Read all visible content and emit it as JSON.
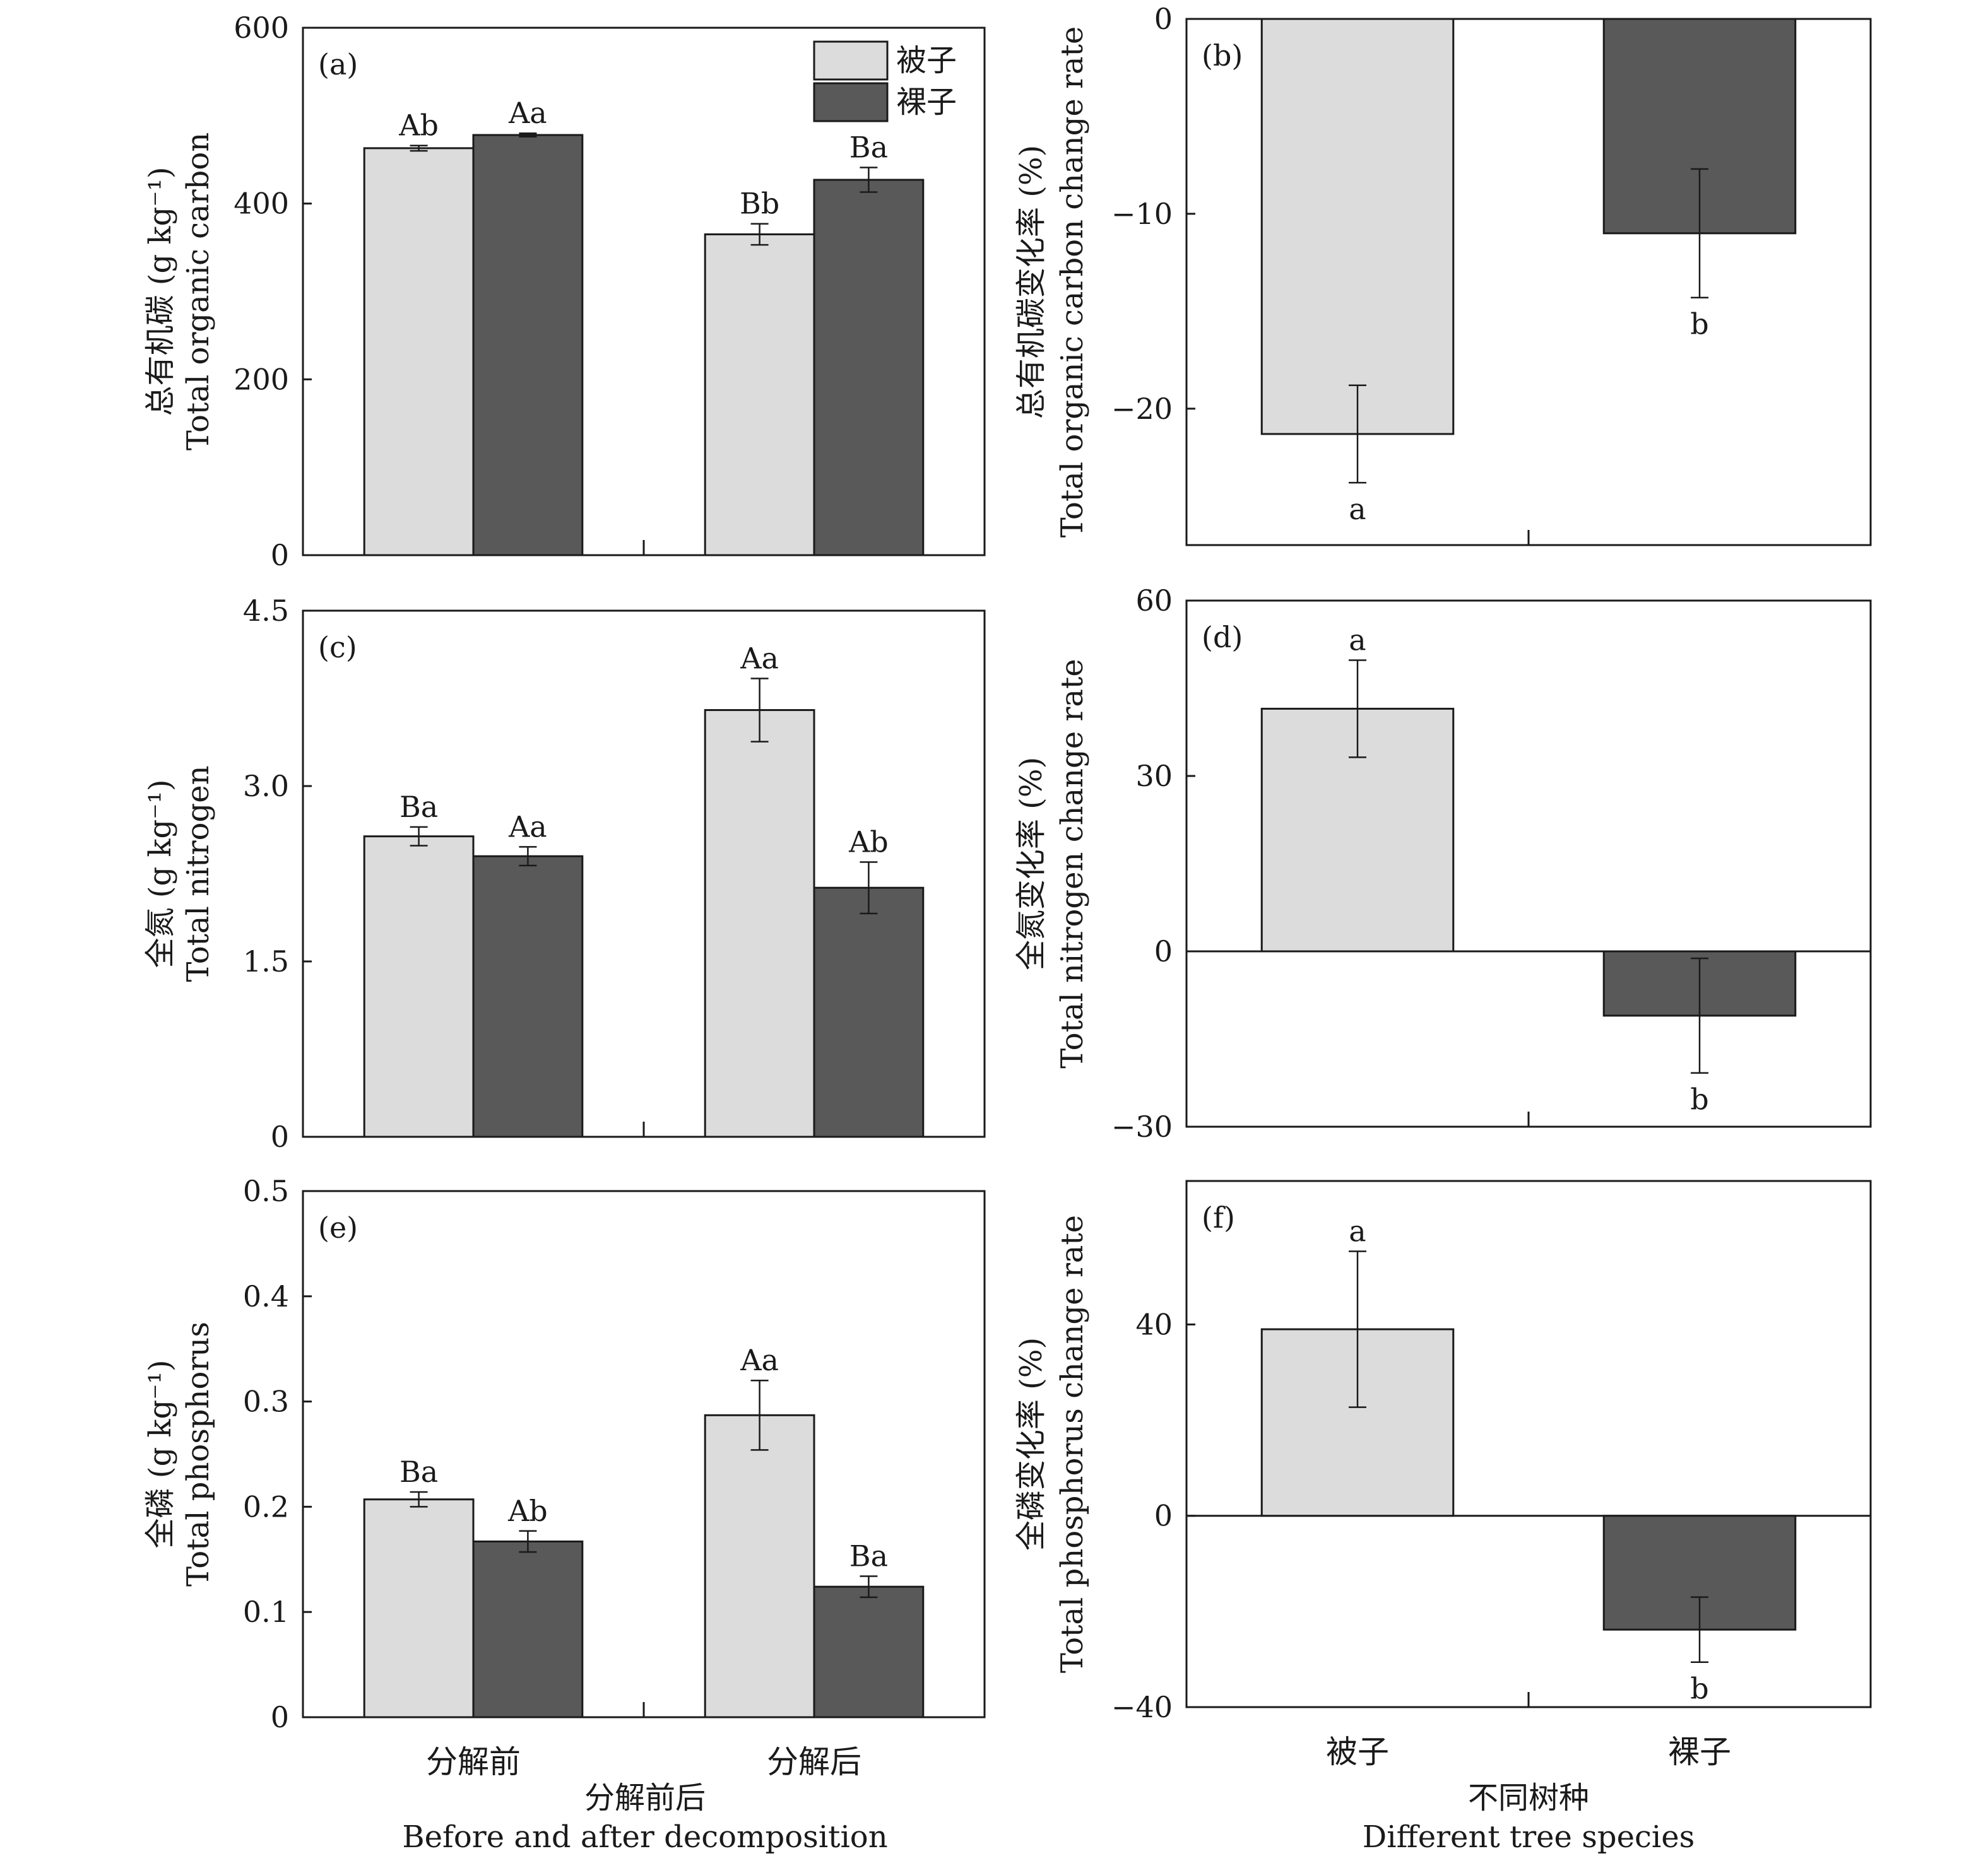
{
  "figure": {
    "xlabels": {
      "left": {
        "zh": "分解前后",
        "en": "Before and after decomposition"
      },
      "right": {
        "zh": "不同树种",
        "en": "Different tree species"
      }
    },
    "legend": {
      "items": [
        "被子",
        "裸子"
      ],
      "placement": "top-right of panel (a)"
    }
  },
  "colors": {
    "angiosperm": "#dcdcdc",
    "gymnosperm": "#595959",
    "axis": "#1a1a1a"
  },
  "chart_data": [
    {
      "panel": "(a)",
      "type": "bar",
      "ylabel_zh": "总有机碳",
      "ylabel_en": "Total organic carbon",
      "yunit": "(g kg⁻¹)",
      "ylim": [
        0,
        600
      ],
      "yticks": [
        0,
        200,
        400,
        600
      ],
      "categories": [
        "分解前",
        "分解后"
      ],
      "series": [
        {
          "name": "被子",
          "values": [
            463,
            365
          ],
          "errors": [
            3,
            12
          ],
          "letters": [
            "Ab",
            "Bb"
          ]
        },
        {
          "name": "裸子",
          "values": [
            478,
            427
          ],
          "errors": [
            2,
            14
          ],
          "letters": [
            "Aa",
            "Ba"
          ]
        }
      ],
      "legend": true
    },
    {
      "panel": "(b)",
      "type": "bar",
      "ylabel_zh": "总有机碳变化率",
      "ylabel_en": "Total organic carbon change rate",
      "yunit": "(%)",
      "ylim": [
        -27,
        0
      ],
      "yticks": [
        -20,
        -10,
        0
      ],
      "categories": [
        "被子",
        "裸子"
      ],
      "series": [
        {
          "values": [
            -21.3,
            -11.0
          ],
          "errors": [
            2.5,
            3.3
          ],
          "letters": [
            "a",
            "b"
          ]
        }
      ]
    },
    {
      "panel": "(c)",
      "type": "bar",
      "ylabel_zh": "全氮",
      "ylabel_en": "Total nitrogen",
      "yunit": "(g kg⁻¹)",
      "ylim": [
        0,
        4.5
      ],
      "yticks": [
        0,
        1.5,
        3.0,
        4.5
      ],
      "categories": [
        "分解前",
        "分解后"
      ],
      "series": [
        {
          "name": "被子",
          "values": [
            2.57,
            3.65
          ],
          "errors": [
            0.08,
            0.27
          ],
          "letters": [
            "Ba",
            "Aa"
          ]
        },
        {
          "name": "裸子",
          "values": [
            2.4,
            2.13
          ],
          "errors": [
            0.08,
            0.22
          ],
          "letters": [
            "Aa",
            "Ab"
          ]
        }
      ]
    },
    {
      "panel": "(d)",
      "type": "bar",
      "ylabel_zh": "全氮变化率",
      "ylabel_en": "Total nitrogen change rate",
      "yunit": "(%)",
      "ylim": [
        -30,
        60
      ],
      "yticks": [
        -30,
        0,
        30,
        60
      ],
      "categories": [
        "被子",
        "裸子"
      ],
      "series": [
        {
          "values": [
            41.5,
            -11.0
          ],
          "errors": [
            8.3,
            9.8
          ],
          "letters": [
            "a",
            "b"
          ]
        }
      ]
    },
    {
      "panel": "(e)",
      "type": "bar",
      "ylabel_zh": "全磷",
      "ylabel_en": "Total phosphorus",
      "yunit": "(g kg⁻¹)",
      "ylim": [
        0,
        0.5
      ],
      "yticks": [
        0,
        0.1,
        0.2,
        0.3,
        0.4,
        0.5
      ],
      "categories": [
        "分解前",
        "分解后"
      ],
      "series": [
        {
          "name": "被子",
          "values": [
            0.207,
            0.287
          ],
          "errors": [
            0.007,
            0.033
          ],
          "letters": [
            "Ba",
            "Aa"
          ]
        },
        {
          "name": "裸子",
          "values": [
            0.167,
            0.124
          ],
          "errors": [
            0.01,
            0.01
          ],
          "letters": [
            "Ab",
            "Ba"
          ]
        }
      ]
    },
    {
      "panel": "(f)",
      "type": "bar",
      "ylabel_zh": "全磷变化率",
      "ylabel_en": "Total phosphorus change rate",
      "yunit": "(%)",
      "ylim": [
        -40,
        70
      ],
      "yticks": [
        -40,
        0,
        40
      ],
      "categories": [
        "被子",
        "裸子"
      ],
      "series": [
        {
          "values": [
            39.0,
            -23.8
          ],
          "errors": [
            16.3,
            6.8
          ],
          "letters": [
            "a",
            "b"
          ]
        }
      ]
    }
  ]
}
